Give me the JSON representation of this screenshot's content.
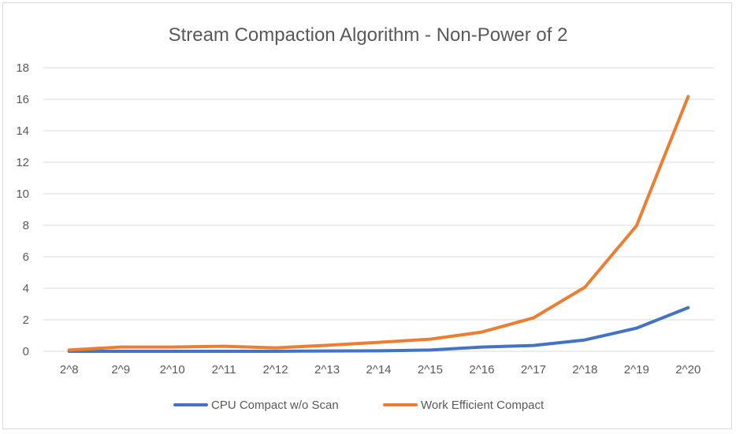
{
  "chart_data": {
    "type": "line",
    "title": "Stream Compaction Algorithm - Non-Power of 2",
    "xlabel": "",
    "ylabel": "",
    "categories": [
      "2^8",
      "2^9",
      "2^10",
      "2^11",
      "2^12",
      "2^13",
      "2^14",
      "2^15",
      "2^16",
      "2^17",
      "2^18",
      "2^19",
      "2^20"
    ],
    "ylim": [
      0,
      18
    ],
    "yticks": [
      0,
      2,
      4,
      6,
      8,
      10,
      12,
      14,
      16,
      18
    ],
    "grid": true,
    "legend_position": "bottom",
    "series": [
      {
        "name": "CPU Compact w/o Scan",
        "color": "#4472c4",
        "values": [
          0.0,
          0.0,
          0.0,
          0.0,
          0.0,
          0.02,
          0.03,
          0.08,
          0.27,
          0.37,
          0.72,
          1.47,
          2.77
        ]
      },
      {
        "name": "Work Efficient Compact",
        "color": "#ed7d31",
        "values": [
          0.08,
          0.27,
          0.27,
          0.32,
          0.22,
          0.38,
          0.57,
          0.77,
          1.22,
          2.12,
          4.07,
          7.97,
          16.17
        ]
      }
    ]
  }
}
